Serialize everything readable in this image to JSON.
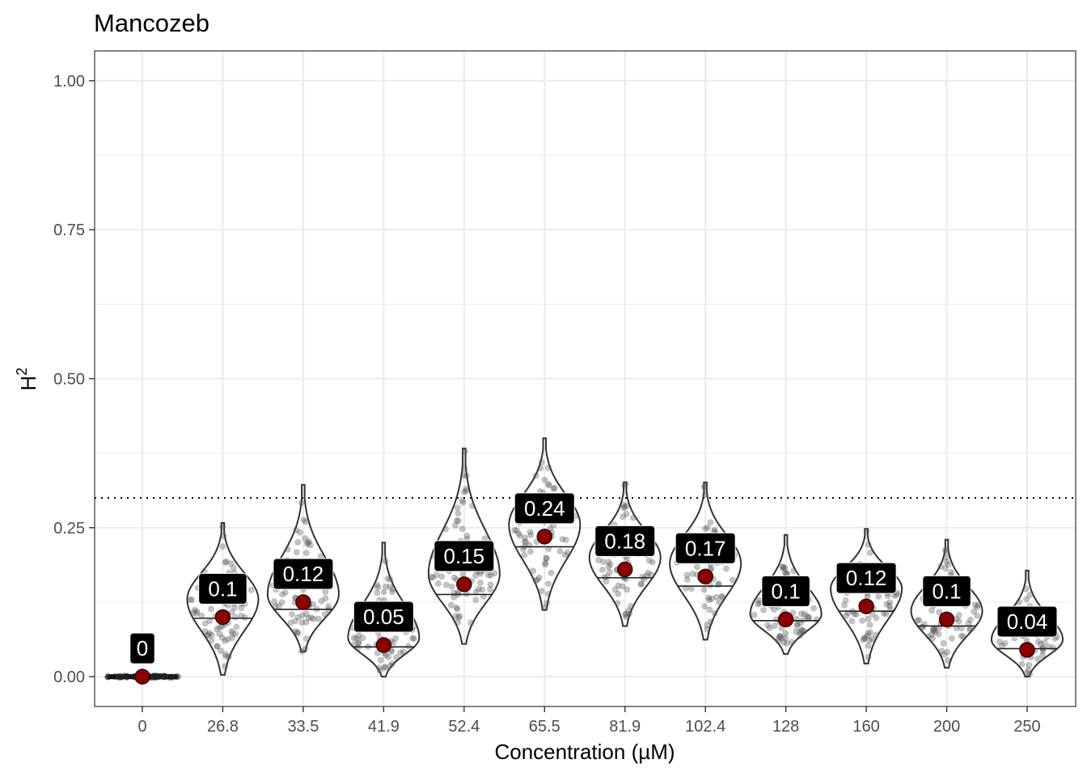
{
  "chart_data": {
    "type": "violin",
    "title": "Mancozeb",
    "xlabel": "Concentration (µM)",
    "ylabel_base": "H",
    "ylabel_sup": "2",
    "categories": [
      "0",
      "26.8",
      "33.5",
      "41.9",
      "52.4",
      "65.5",
      "81.9",
      "102.4",
      "128",
      "160",
      "200",
      "250"
    ],
    "means": [
      0,
      0.1,
      0.125,
      0.053,
      0.155,
      0.235,
      0.18,
      0.168,
      0.096,
      0.118,
      0.096,
      0.045
    ],
    "medians": [
      0,
      0.098,
      0.113,
      0.05,
      0.138,
      0.218,
      0.166,
      0.152,
      0.094,
      0.11,
      0.085,
      0.047
    ],
    "mins": [
      0,
      0.003,
      0.042,
      0.0,
      0.055,
      0.112,
      0.085,
      0.062,
      0.038,
      0.022,
      0.015,
      0.0
    ],
    "maxs": [
      0.005,
      0.258,
      0.322,
      0.225,
      0.383,
      0.4,
      0.326,
      0.326,
      0.238,
      0.248,
      0.23,
      0.178
    ],
    "modes": [
      0,
      0.13,
      0.138,
      0.065,
      0.172,
      0.255,
      0.2,
      0.19,
      0.105,
      0.148,
      0.11,
      0.062
    ],
    "mean_labels": [
      "0",
      "0.1",
      "0.12",
      "0.05",
      "0.15",
      "0.24",
      "0.18",
      "0.17",
      "0.1",
      "0.12",
      "0.1",
      "0.04"
    ],
    "y_ticks": [
      0,
      0.25,
      0.5,
      0.75,
      1.0
    ],
    "y_tick_labels": [
      "0.00",
      "0.25",
      "0.50",
      "0.75",
      "1.00"
    ],
    "ylim": [
      -0.05,
      1.05
    ],
    "reference_line": 0.3,
    "grid": true,
    "colors": {
      "mean_point": "#8b0000",
      "violin_outline": "#333333",
      "jitter_points": "#555555",
      "label_bg": "#000000",
      "label_text": "#ffffff",
      "grid": "#ebebeb",
      "panel_border": "#333333"
    }
  }
}
